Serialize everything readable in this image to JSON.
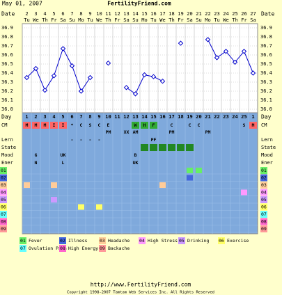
{
  "chart_data": {
    "type": "line",
    "title": "May 01, 2007",
    "site": "FertilityFriend.com",
    "date_label": "Date",
    "day_label": "Day",
    "categories": [
      "2",
      "3",
      "4",
      "5",
      "6",
      "7",
      "8",
      "9",
      "10",
      "11",
      "12",
      "13",
      "14",
      "15",
      "16",
      "17",
      "18",
      "19",
      "20",
      "21",
      "22",
      "23",
      "24",
      "25",
      "26",
      "27"
    ],
    "weekdays": [
      "Tu",
      "We",
      "Th",
      "Fr",
      "Sa",
      "Su",
      "Mo",
      "Tu",
      "We",
      "Th",
      "Fr",
      "Sa",
      "Su",
      "Mo",
      "Tu",
      "We",
      "Th",
      "Fr",
      "Sa",
      "Su",
      "Mo",
      "Tu",
      "We",
      "Th",
      "Fr",
      "Sa"
    ],
    "days": [
      "1",
      "2",
      "3",
      "4",
      "5",
      "6",
      "7",
      "8",
      "9",
      "10",
      "11",
      "12",
      "13",
      "14",
      "15",
      "16",
      "17",
      "18",
      "19",
      "20",
      "21",
      "22",
      "23",
      "24",
      "25",
      "1"
    ],
    "series": [
      {
        "name": "Temperature",
        "color": "#0000cc",
        "values": [
          36.35,
          36.45,
          36.21,
          36.37,
          36.67,
          36.48,
          36.2,
          36.35,
          null,
          36.51,
          null,
          36.24,
          36.17,
          36.38,
          36.36,
          36.31,
          null,
          36.73,
          null,
          null,
          36.77,
          36.57,
          36.64,
          36.52,
          36.64,
          36.4
        ]
      }
    ],
    "ylim": [
      36.0,
      36.9
    ],
    "yticks": [
      {
        "value": 36.0,
        "label": "36.0"
      },
      36.1,
      36.2,
      36.3,
      36.4,
      36.5,
      36.6,
      36.7,
      36.8,
      36.9
    ],
    "grid": true,
    "rows": [
      {
        "label": "CM",
        "cells": [
          "M",
          "M",
          "M",
          "I",
          "I",
          "*",
          "C",
          "S",
          "C",
          "E",
          null,
          null,
          "W",
          "H",
          "F",
          null,
          "C",
          null,
          "C",
          "C",
          null,
          null,
          null,
          null,
          "S",
          "M"
        ],
        "colors": [
          "#ff6666",
          "#ff6666",
          "#ff6666",
          "#ff6666",
          "#ff6666",
          null,
          null,
          null,
          null,
          null,
          null,
          null,
          "#33aa33",
          "#33aa33",
          "#33aa33",
          null,
          null,
          null,
          null,
          null,
          null,
          null,
          null,
          null,
          null,
          "#ff6666"
        ]
      },
      {
        "cells": [
          null,
          null,
          null,
          null,
          null,
          null,
          null,
          null,
          null,
          "PM",
          null,
          "XX",
          "AM",
          null,
          null,
          null,
          "PM",
          null,
          null,
          null,
          "PM",
          null,
          null,
          null,
          null,
          null
        ]
      },
      {
        "label": "Lern",
        "cells": [
          null,
          null,
          null,
          null,
          null,
          "-",
          "-",
          "-",
          "-",
          null,
          null,
          null,
          null,
          null,
          "PF",
          null,
          null,
          null,
          null,
          null,
          null,
          null,
          null,
          null,
          null,
          null
        ]
      },
      {
        "label": "State",
        "cells": [
          null,
          null,
          null,
          null,
          null,
          null,
          null,
          null,
          null,
          null,
          null,
          null,
          null,
          "",
          "",
          "",
          "",
          "",
          "",
          null,
          null,
          null,
          null,
          null,
          null,
          null
        ],
        "colors": [
          null,
          null,
          null,
          null,
          null,
          null,
          null,
          null,
          null,
          null,
          null,
          null,
          null,
          "#228822",
          "#228822",
          "#228822",
          "#228822",
          "#228822",
          "#228822",
          null,
          null,
          null,
          null,
          null,
          null,
          null
        ]
      },
      {
        "label": "Mood",
        "cells": [
          null,
          "G",
          null,
          null,
          "UK",
          null,
          null,
          null,
          null,
          null,
          null,
          null,
          "B",
          null,
          null,
          null,
          null,
          null,
          null,
          null,
          null,
          null,
          null,
          null,
          null,
          null
        ]
      },
      {
        "label": "Ener",
        "cells": [
          null,
          "N",
          null,
          null,
          "L",
          null,
          null,
          null,
          null,
          null,
          null,
          null,
          "UK",
          null,
          null,
          null,
          null,
          null,
          null,
          null,
          null,
          null,
          null,
          null,
          null,
          null
        ]
      }
    ],
    "symptoms": [
      {
        "code": "01",
        "name": "Fever",
        "color": "#66ee66",
        "days": [
          19,
          20
        ]
      },
      {
        "code": "02",
        "name": "Illness",
        "color": "#4466dd",
        "days": [
          19
        ]
      },
      {
        "code": "03",
        "name": "Headache",
        "color": "#ffcc99",
        "days": [
          1,
          4,
          16
        ]
      },
      {
        "code": "04",
        "name": "High Stress",
        "color": "#ff99ff",
        "days": [
          25
        ]
      },
      {
        "code": "05",
        "name": "Drinking",
        "color": "#cc99ff",
        "days": [
          4
        ]
      },
      {
        "code": "06",
        "name": "Exercise",
        "color": "#ffff66",
        "days": [
          7,
          9
        ]
      },
      {
        "code": "07",
        "name": "Ovulation Pain",
        "color": "#66ffff",
        "days": []
      },
      {
        "code": "08",
        "name": "High Energy",
        "color": "#ff66cc",
        "days": []
      },
      {
        "code": "09",
        "name": "Backache",
        "color": "#ff9999",
        "days": []
      }
    ],
    "footer_url": "http://www.FertilityFriend.com",
    "copyright": "Copyright 1998-2007 Tamtam Web Services Inc. All Rights Reserved"
  }
}
